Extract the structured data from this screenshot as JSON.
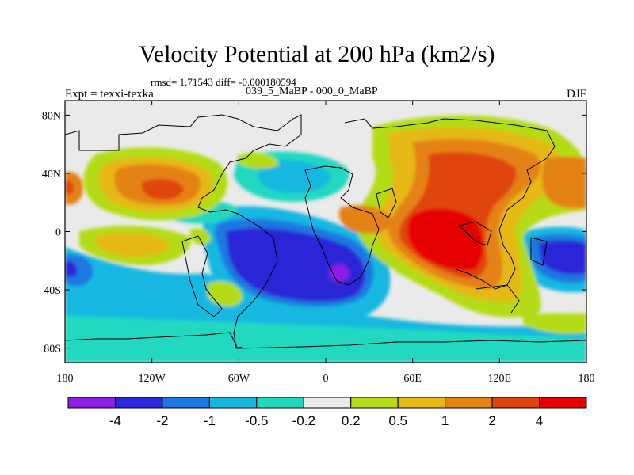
{
  "title": "Velocity Potential at 200 hPa (km2/s)",
  "stats": "rmsd= 1.71543 diff= -0.000180594",
  "experiment_label": "Expt = texxi-texka",
  "experiment_name": "039_5_MaBP - 000_0_MaBP",
  "season": "DJF",
  "map": {
    "lon_range": [
      -180,
      180
    ],
    "lat_range": [
      -90,
      90
    ],
    "y_ticks": [
      {
        "lat": 80,
        "label": "80N"
      },
      {
        "lat": 40,
        "label": "40N"
      },
      {
        "lat": 0,
        "label": "0"
      },
      {
        "lat": -40,
        "label": "40S"
      },
      {
        "lat": -80,
        "label": "80S"
      }
    ],
    "x_ticks": [
      {
        "lon": -180,
        "label": "180"
      },
      {
        "lon": -120,
        "label": "120W"
      },
      {
        "lon": -60,
        "label": "60W"
      },
      {
        "lon": 0,
        "label": "0"
      },
      {
        "lon": 60,
        "label": "60E"
      },
      {
        "lon": 120,
        "label": "120E"
      },
      {
        "lon": 180,
        "label": "180"
      }
    ]
  },
  "colorbar": {
    "colors": [
      "#8c1ee6",
      "#2a28d8",
      "#1a78e0",
      "#12b8e2",
      "#20d8c0",
      "#eaeaea",
      "#b4dc18",
      "#e6b814",
      "#e48214",
      "#e0440c",
      "#e60000"
    ],
    "labels": [
      "-4",
      "-2",
      "-1",
      "-0.5",
      "-0.2",
      "0.2",
      "0.5",
      "1",
      "2",
      "4"
    ]
  }
}
